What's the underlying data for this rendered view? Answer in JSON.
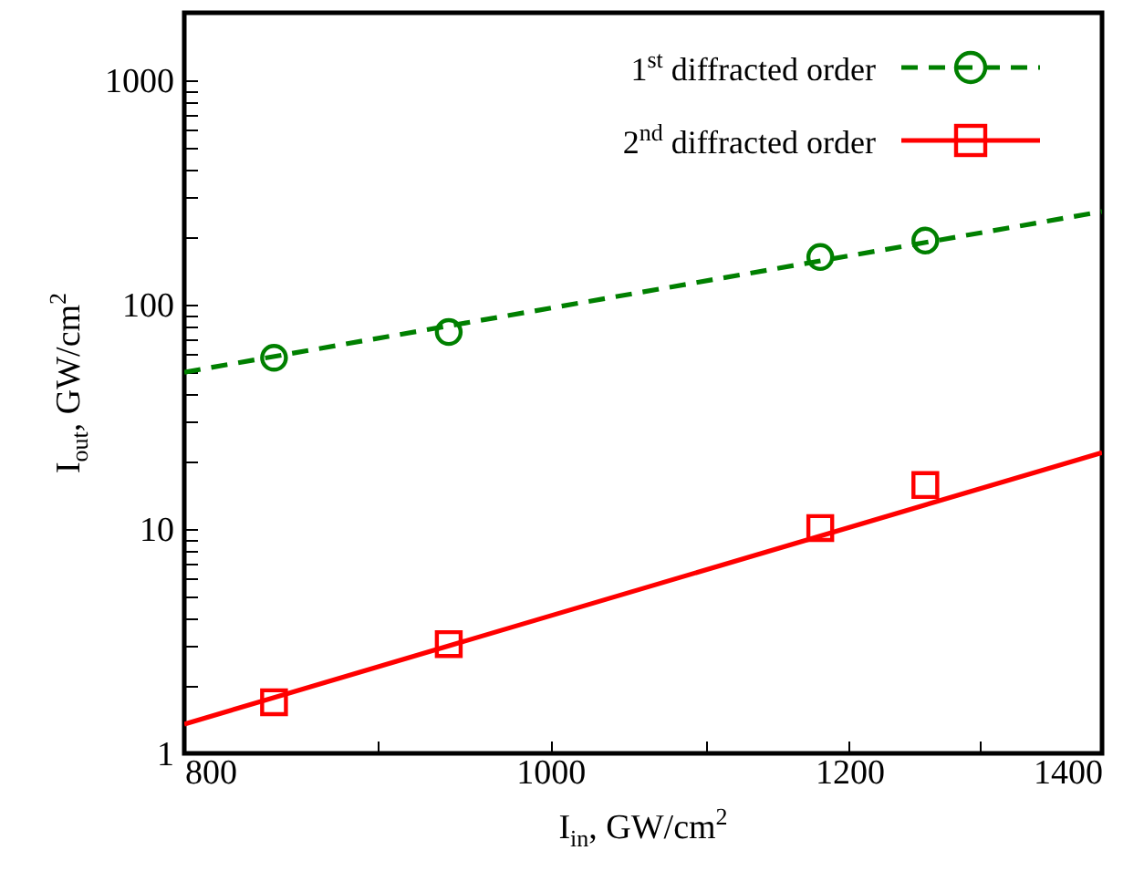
{
  "chart_data": {
    "type": "scatter",
    "xlabel": "I$_{in}$,  GW/cm$^{2}$",
    "ylabel": "I$_{out}$,  GW/cm$^{2}$",
    "log": "xy",
    "grid": false,
    "legend": "top right",
    "xlim": [
      800,
      1400
    ],
    "xticks": [
      800,
      {
        "value": 900,
        "label": null
      },
      1000,
      {
        "value": 1100,
        "label": null
      },
      1200,
      {
        "value": 1300,
        "label": null
      },
      1400
    ],
    "ylim": [
      1,
      2000
    ],
    "yticks": [
      1,
      {
        "value": 2,
        "label": null
      },
      {
        "value": 3,
        "label": null
      },
      {
        "value": 4,
        "label": null
      },
      {
        "value": 5,
        "label": null
      },
      {
        "value": 6,
        "label": null
      },
      {
        "value": 7,
        "label": null
      },
      {
        "value": 8,
        "label": null
      },
      {
        "value": 9,
        "label": null
      },
      10,
      {
        "value": 20,
        "label": null
      },
      {
        "value": 30,
        "label": null
      },
      {
        "value": 40,
        "label": null
      },
      {
        "value": 50,
        "label": null
      },
      {
        "value": 60,
        "label": null
      },
      {
        "value": 70,
        "label": null
      },
      {
        "value": 80,
        "label": null
      },
      {
        "value": 90,
        "label": null
      },
      100,
      {
        "value": 200,
        "label": null
      },
      {
        "value": 300,
        "label": null
      },
      {
        "value": 400,
        "label": null
      },
      {
        "value": 500,
        "label": null
      },
      {
        "value": 600,
        "label": null
      },
      {
        "value": 700,
        "label": null
      },
      {
        "value": 800,
        "label": null
      },
      {
        "value": 900,
        "label": null
      },
      1000
    ],
    "series": [
      {
        "name": "1$^{st}$ diffracted order",
        "color": "#008000",
        "marker": "circle",
        "line_style": "dashed",
        "x": [
          845,
          940,
          1179,
          1257
        ],
        "values": [
          58,
          75.5,
          163,
          193
        ]
      },
      {
        "type": "line",
        "color": "#008000",
        "line_style": "dashed",
        "x": [
          800,
          1400
        ],
        "values": [
          50,
          260
        ]
      },
      {
        "name": "2$^{nd}$ diffracted order",
        "color": "#ff0000",
        "marker": "square",
        "line_style": "solid",
        "x": [
          845,
          940,
          1179,
          1257
        ],
        "values": [
          1.69,
          3.07,
          10.1,
          15.7
        ]
      },
      {
        "type": "line",
        "color": "#ff0000",
        "line_style": "solid",
        "x": [
          800,
          1400
        ],
        "values": [
          1.35,
          21.9
        ]
      }
    ]
  }
}
